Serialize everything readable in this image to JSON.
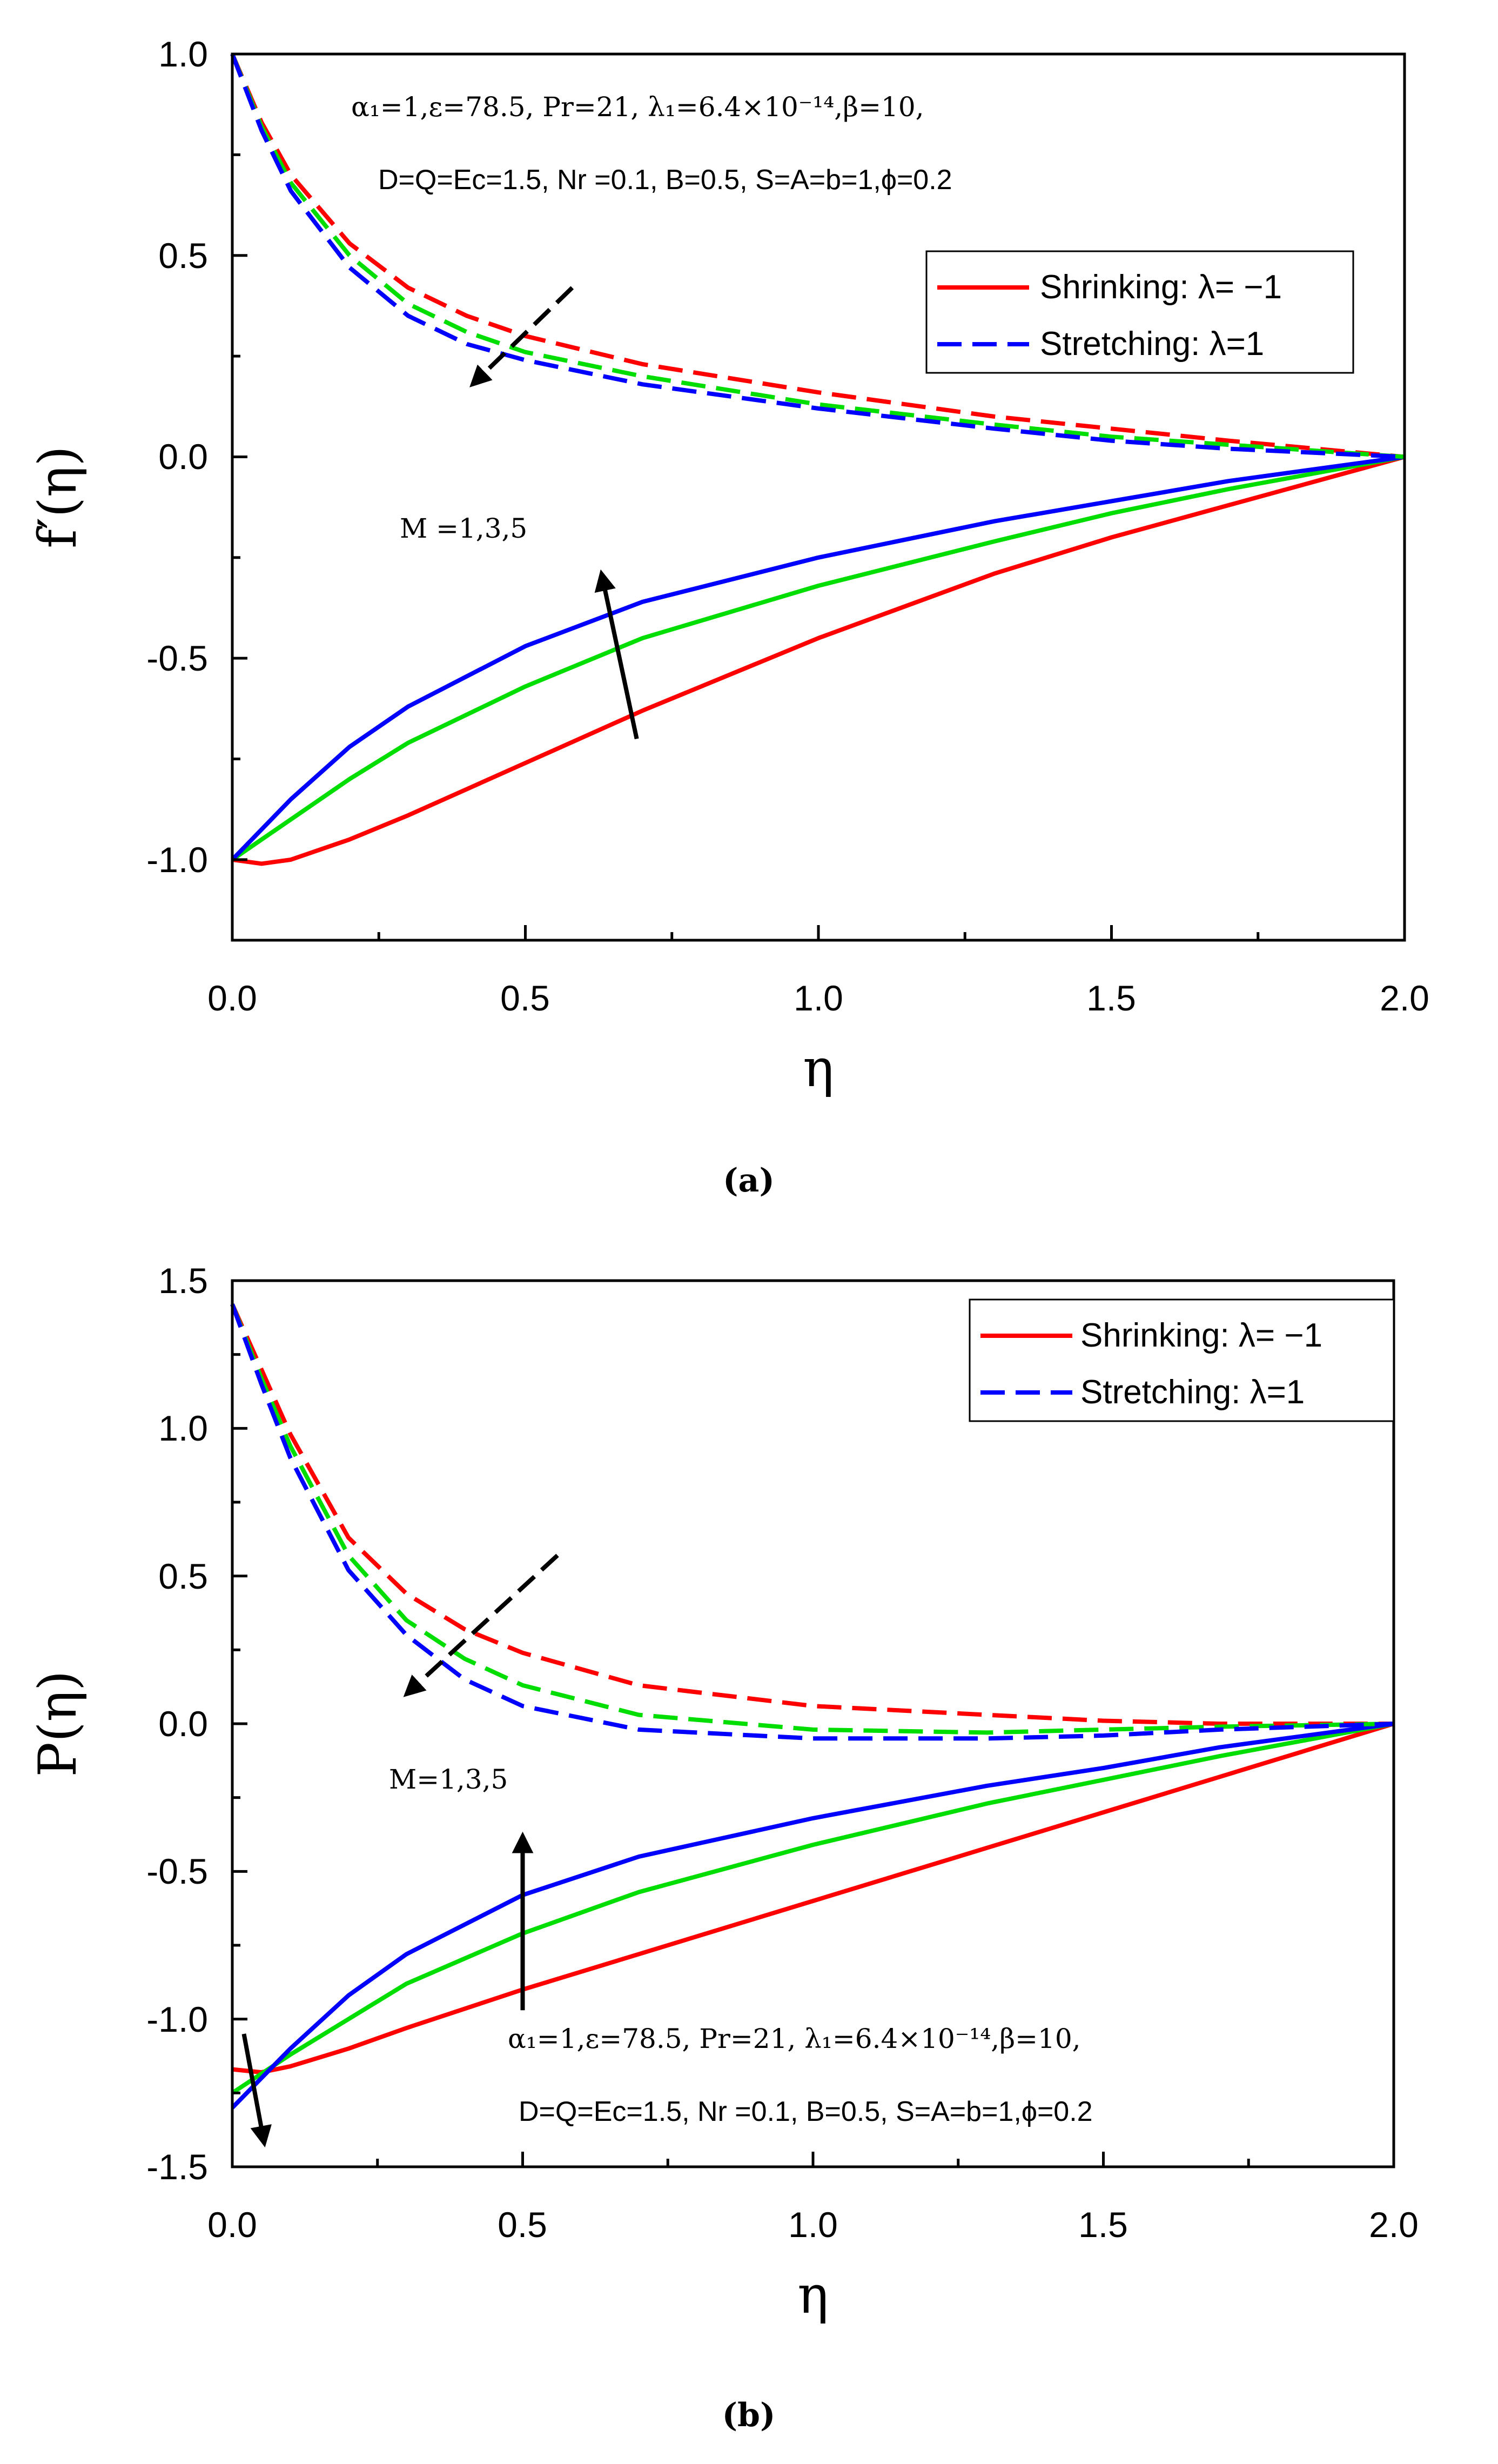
{
  "chart_data": [
    {
      "type": "line",
      "panel": "a",
      "caption": "(a)",
      "xlabel": "η",
      "ylabel": "f′(η)",
      "xlim": [
        0,
        2
      ],
      "ylim": [
        -1.2,
        1.0
      ],
      "xticks": [
        "0.0",
        "0.5",
        "1.0",
        "1.5",
        "2.0"
      ],
      "yticks": [
        "-1.0",
        "-0.5",
        "0.0",
        "0.5",
        "1.0"
      ],
      "legend": [
        "Shrinking: λ= −1",
        "Stretching: λ=1"
      ],
      "params_line1": "α₁=1,ε=78.5, Pr=21, λ₁=6.4×10⁻¹⁴,β=10,",
      "params_line2": "D=Q=Ec=1.5, Nr =0.1, B=0.5, S=A=b=1,ϕ=0.2",
      "m_label": "M =1,3,5",
      "series": [
        {
          "name": "Shrinking M=1",
          "color": "#ff0000",
          "dash": false,
          "x": [
            0,
            0.05,
            0.1,
            0.2,
            0.3,
            0.5,
            0.7,
            1.0,
            1.3,
            1.5,
            1.7,
            2.0
          ],
          "y": [
            -1.0,
            -1.01,
            -1.0,
            -0.95,
            -0.89,
            -0.76,
            -0.63,
            -0.45,
            -0.29,
            -0.2,
            -0.12,
            0.0
          ]
        },
        {
          "name": "Shrinking M=3",
          "color": "#00dd00",
          "dash": false,
          "x": [
            0,
            0.1,
            0.2,
            0.3,
            0.5,
            0.7,
            1.0,
            1.3,
            1.5,
            1.7,
            2.0
          ],
          "y": [
            -1.0,
            -0.9,
            -0.8,
            -0.71,
            -0.57,
            -0.45,
            -0.32,
            -0.21,
            -0.14,
            -0.08,
            0.0
          ]
        },
        {
          "name": "Shrinking M=5",
          "color": "#0000ff",
          "dash": false,
          "x": [
            0,
            0.1,
            0.2,
            0.3,
            0.5,
            0.7,
            1.0,
            1.3,
            1.5,
            1.7,
            2.0
          ],
          "y": [
            -1.0,
            -0.85,
            -0.72,
            -0.62,
            -0.47,
            -0.36,
            -0.25,
            -0.16,
            -0.11,
            -0.06,
            0.0
          ]
        },
        {
          "name": "Stretching M=1",
          "color": "#ff0000",
          "dash": true,
          "x": [
            0,
            0.05,
            0.1,
            0.2,
            0.3,
            0.4,
            0.5,
            0.7,
            1.0,
            1.3,
            1.5,
            1.7,
            2.0
          ],
          "y": [
            1.0,
            0.83,
            0.7,
            0.53,
            0.42,
            0.35,
            0.3,
            0.23,
            0.16,
            0.1,
            0.07,
            0.04,
            0.0
          ]
        },
        {
          "name": "Stretching M=3",
          "color": "#00dd00",
          "dash": true,
          "x": [
            0,
            0.05,
            0.1,
            0.2,
            0.3,
            0.4,
            0.5,
            0.7,
            1.0,
            1.3,
            1.5,
            1.7,
            2.0
          ],
          "y": [
            1.0,
            0.82,
            0.68,
            0.5,
            0.38,
            0.31,
            0.26,
            0.2,
            0.13,
            0.08,
            0.05,
            0.03,
            0.0
          ]
        },
        {
          "name": "Stretching M=5",
          "color": "#0000ff",
          "dash": true,
          "x": [
            0,
            0.05,
            0.1,
            0.2,
            0.3,
            0.4,
            0.5,
            0.7,
            1.0,
            1.3,
            1.5,
            1.7,
            2.0
          ],
          "y": [
            1.0,
            0.81,
            0.66,
            0.47,
            0.35,
            0.28,
            0.24,
            0.18,
            0.12,
            0.07,
            0.04,
            0.02,
            0.0
          ]
        }
      ],
      "arrows": [
        {
          "dash": true,
          "from": [
            0.58,
            0.42
          ],
          "to": [
            0.41,
            0.18
          ]
        },
        {
          "dash": false,
          "from": [
            0.69,
            -0.7
          ],
          "to": [
            0.63,
            -0.29
          ]
        }
      ]
    },
    {
      "type": "line",
      "panel": "b",
      "caption": "(b)",
      "xlabel": "η",
      "ylabel": "P(η)",
      "xlim": [
        0,
        2
      ],
      "ylim": [
        -1.5,
        1.5
      ],
      "xticks": [
        "0.0",
        "0.5",
        "1.0",
        "1.5",
        "2.0"
      ],
      "yticks": [
        "-1.5",
        "-1.0",
        "-0.5",
        "0.0",
        "0.5",
        "1.0",
        "1.5"
      ],
      "legend": [
        "Shrinking: λ= −1",
        "Stretching: λ=1"
      ],
      "params_line1": "α₁=1,ε=78.5, Pr=21, λ₁=6.4×10⁻¹⁴,β=10,",
      "params_line2": "D=Q=Ec=1.5, Nr =0.1, B=0.5, S=A=b=1,ϕ=0.2",
      "m_label": "M=1,3,5",
      "series": [
        {
          "name": "Shrinking M=1",
          "color": "#ff0000",
          "dash": false,
          "x": [
            0,
            0.05,
            0.1,
            0.2,
            0.3,
            0.5,
            0.7,
            1.0,
            1.3,
            1.5,
            1.7,
            2.0
          ],
          "y": [
            -1.17,
            -1.18,
            -1.16,
            -1.1,
            -1.03,
            -0.9,
            -0.78,
            -0.6,
            -0.42,
            -0.3,
            -0.18,
            0.0
          ]
        },
        {
          "name": "Shrinking M=3",
          "color": "#00dd00",
          "dash": false,
          "x": [
            0,
            0.1,
            0.2,
            0.3,
            0.5,
            0.7,
            1.0,
            1.3,
            1.5,
            1.7,
            2.0
          ],
          "y": [
            -1.25,
            -1.12,
            -1.0,
            -0.88,
            -0.71,
            -0.57,
            -0.41,
            -0.27,
            -0.19,
            -0.11,
            0.0
          ]
        },
        {
          "name": "Shrinking M=5",
          "color": "#0000ff",
          "dash": false,
          "x": [
            0,
            0.1,
            0.2,
            0.3,
            0.5,
            0.7,
            1.0,
            1.3,
            1.5,
            1.7,
            2.0
          ],
          "y": [
            -1.3,
            -1.1,
            -0.92,
            -0.78,
            -0.58,
            -0.45,
            -0.32,
            -0.21,
            -0.15,
            -0.08,
            0.0
          ]
        },
        {
          "name": "Stretching M=1",
          "color": "#ff0000",
          "dash": true,
          "x": [
            0,
            0.05,
            0.1,
            0.2,
            0.3,
            0.4,
            0.5,
            0.7,
            1.0,
            1.3,
            1.5,
            1.7,
            2.0
          ],
          "y": [
            1.42,
            1.2,
            0.98,
            0.63,
            0.44,
            0.32,
            0.24,
            0.13,
            0.06,
            0.03,
            0.01,
            0.0,
            0.0
          ]
        },
        {
          "name": "Stretching M=3",
          "color": "#00dd00",
          "dash": true,
          "x": [
            0,
            0.05,
            0.1,
            0.2,
            0.3,
            0.4,
            0.5,
            0.7,
            1.0,
            1.3,
            1.5,
            1.7,
            2.0
          ],
          "y": [
            1.42,
            1.17,
            0.94,
            0.57,
            0.35,
            0.22,
            0.13,
            0.03,
            -0.02,
            -0.03,
            -0.02,
            -0.01,
            0.0
          ]
        },
        {
          "name": "Stretching M=5",
          "color": "#0000ff",
          "dash": true,
          "x": [
            0,
            0.05,
            0.1,
            0.2,
            0.3,
            0.4,
            0.5,
            0.7,
            1.0,
            1.3,
            1.5,
            1.7,
            2.0
          ],
          "y": [
            1.42,
            1.15,
            0.9,
            0.52,
            0.3,
            0.15,
            0.06,
            -0.02,
            -0.05,
            -0.05,
            -0.04,
            -0.02,
            0.0
          ]
        }
      ],
      "arrows": [
        {
          "dash": true,
          "from": [
            0.56,
            0.57
          ],
          "to": [
            0.3,
            0.1
          ]
        },
        {
          "dash": false,
          "from": [
            0.5,
            -0.97
          ],
          "to": [
            0.5,
            -0.38
          ]
        },
        {
          "dash": false,
          "from": [
            0.02,
            -1.05
          ],
          "to": [
            0.055,
            -1.42
          ]
        }
      ]
    }
  ]
}
